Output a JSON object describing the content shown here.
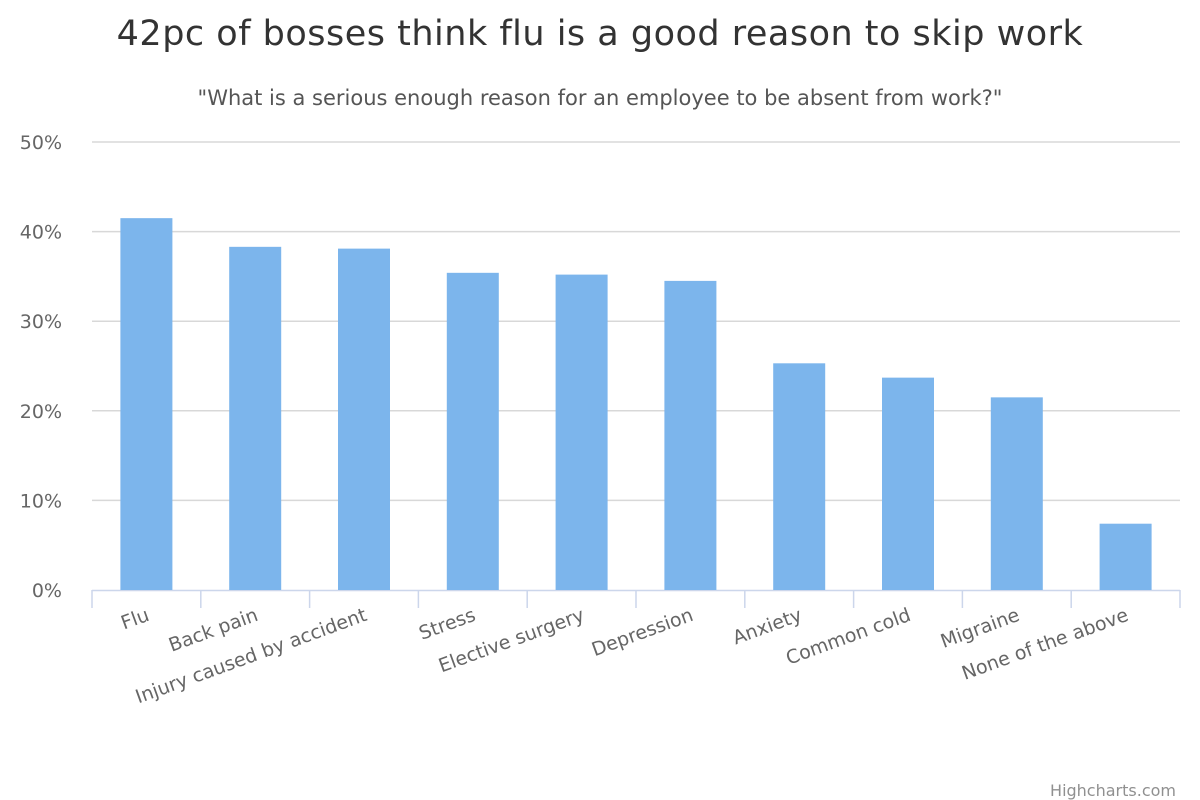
{
  "chart_data": {
    "type": "bar",
    "title": "42pc of bosses think flu is a good reason to skip work",
    "subtitle": "\"What is a serious enough reason for an employee to be absent from work?\"",
    "xlabel": "",
    "ylabel": "",
    "categories": [
      "Flu",
      "Back pain",
      "Injury caused by accident",
      "Stress",
      "Elective surgery",
      "Depression",
      "Anxiety",
      "Common cold",
      "Migraine",
      "None of the above"
    ],
    "values": [
      41.5,
      38.3,
      38.1,
      35.4,
      35.2,
      34.5,
      25.3,
      23.7,
      21.5,
      7.4
    ],
    "yticks": [
      "0%",
      "10%",
      "20%",
      "30%",
      "40%",
      "50%"
    ],
    "ylim": [
      0,
      50
    ],
    "grid": true,
    "legend": "none",
    "colors": {
      "bar": "#7cb5ec",
      "grid": "#d8d8d8",
      "axis": "#ccd6eb",
      "label": "#666666"
    }
  },
  "credits": "Highcharts.com"
}
